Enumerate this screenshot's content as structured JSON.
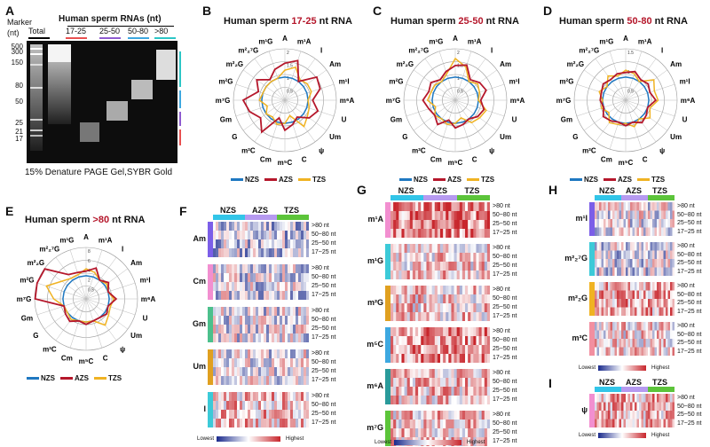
{
  "panel_letters": [
    "A",
    "B",
    "C",
    "D",
    "E",
    "F",
    "G",
    "H",
    "I"
  ],
  "gel": {
    "marker_label": "Marker",
    "nt_label": "(nt)",
    "header": "Human sperm RNAs (nt)",
    "lanes": [
      "Total",
      "17-25",
      "25-50",
      "50-80",
      ">80"
    ],
    "lane_colors": [
      "#000000",
      "#e85050",
      "#8e5bd0",
      "#3ea8e0",
      "#2cc6c6"
    ],
    "marker_sizes": [
      "500",
      "300",
      "150",
      "80",
      "50",
      "25",
      "21",
      "17"
    ],
    "caption": "15% Denature PAGE Gel,SYBR Gold"
  },
  "radar_axes": [
    "A",
    "m¹A",
    "I",
    "Am",
    "m¹I",
    "m⁶A",
    "U",
    "Um",
    "ψ",
    "C",
    "m⁵C",
    "Cm",
    "m³C",
    "G",
    "Gm",
    "m⁷G",
    "m²G",
    "m²₂G",
    "m²₂⁷G",
    "m¹G"
  ],
  "radars": [
    {
      "title_pre": "Human sperm ",
      "title_hl": "17-25",
      "title_post": " nt RNA",
      "rings": [
        "2",
        "1.5",
        "1",
        "0.5"
      ],
      "series": {
        "NZS": [
          1,
          1,
          1,
          1,
          1,
          1,
          1,
          1,
          1,
          1,
          1,
          1,
          1,
          1,
          1,
          1,
          1,
          1,
          1,
          1
        ],
        "AZS": [
          1.6,
          1.8,
          1.0,
          1.7,
          1.6,
          1.2,
          1.5,
          1.3,
          0.9,
          1.1,
          1.3,
          0.8,
          1.7,
          1.3,
          1.6,
          1.8,
          1.2,
          1.5,
          1.1,
          1.4
        ],
        "TZS": [
          1.3,
          1.5,
          1.1,
          1.2,
          1.2,
          1.0,
          1.1,
          1.2,
          1.4,
          0.7,
          1.0,
          1.1,
          0.9,
          1.0,
          0.8,
          1.1,
          1.0,
          1.0,
          1.0,
          1.0
        ]
      }
    },
    {
      "title_pre": "Human sperm ",
      "title_hl": "25-50",
      "title_post": " nt RNA",
      "rings": [
        "2",
        "1.5",
        "1",
        "0.5"
      ],
      "series": {
        "NZS": [
          1,
          1,
          1,
          1,
          1,
          1,
          1,
          1,
          1,
          1,
          1,
          1,
          1,
          1,
          1,
          1,
          1,
          1,
          1,
          1
        ],
        "AZS": [
          1.5,
          1.6,
          1.1,
          1.3,
          1.4,
          1.1,
          1.3,
          1.2,
          1.0,
          1.1,
          1.2,
          0.9,
          1.3,
          1.1,
          1.2,
          1.4,
          1.2,
          1.3,
          1.1,
          1.3
        ],
        "TZS": [
          1.8,
          1.5,
          1.0,
          1.2,
          1.1,
          1.0,
          1.4,
          1.3,
          1.2,
          0.8,
          1.0,
          1.1,
          1.0,
          1.1,
          0.9,
          1.2,
          1.1,
          1.1,
          1.0,
          1.2
        ]
      }
    },
    {
      "title_pre": "Human sperm ",
      "title_hl": "50-80",
      "title_post": " nt RNA",
      "rings": [
        "1.5",
        "1",
        "0.5"
      ],
      "series": {
        "NZS": [
          1,
          1,
          1,
          1,
          1,
          1,
          1,
          1,
          1,
          1,
          1,
          1,
          1,
          1,
          1,
          1,
          1,
          1,
          1,
          1
        ],
        "AZS": [
          1.2,
          1.3,
          1.1,
          1.2,
          1.1,
          1.3,
          1.0,
          1.1,
          1.2,
          1.0,
          1.1,
          1.0,
          1.1,
          1.2,
          1.0,
          1.1,
          1.1,
          1.2,
          1.1,
          1.2
        ],
        "TZS": [
          1.3,
          1.2,
          1.0,
          1.5,
          1.3,
          1.4,
          1.1,
          1.3,
          1.0,
          1.2,
          1.0,
          1.1,
          1.2,
          0.9,
          1.1,
          1.0,
          1.2,
          1.0,
          1.3,
          1.1
        ]
      }
    },
    {
      "title_pre": "Human sperm ",
      "title_hl": ">80",
      "title_post": " nt RNA",
      "rings": [
        "8",
        "6",
        "4",
        "2",
        "0.5"
      ],
      "series": {
        "NZS": [
          1,
          1,
          1,
          1,
          1,
          1,
          1,
          1,
          1,
          1,
          1,
          1,
          1,
          1,
          1,
          1,
          1,
          1,
          1,
          1
        ],
        "AZS": [
          1.2,
          1.4,
          1.0,
          1.2,
          1.0,
          1.3,
          1.0,
          1.1,
          1.0,
          1.0,
          1.1,
          1.0,
          1.2,
          1.1,
          1.0,
          2.2,
          3.6,
          2.2,
          1.3,
          1.2
        ],
        "TZS": [
          1.3,
          1.2,
          1.0,
          1.1,
          1.0,
          1.2,
          1.1,
          1.2,
          1.4,
          1.0,
          1.0,
          1.0,
          1.1,
          1.0,
          1.0,
          1.4,
          1.8,
          1.3,
          1.1,
          1.1
        ]
      }
    }
  ],
  "legend": [
    {
      "name": "NZS",
      "color": "#1f78c1"
    },
    {
      "name": "AZS",
      "color": "#b5172b"
    },
    {
      "name": "TZS",
      "color": "#f0b323"
    }
  ],
  "heatmap_groups": [
    {
      "name": "NZS",
      "color": "#32c5e8"
    },
    {
      "name": "AZS",
      "color": "#b69af0"
    },
    {
      "name": "TZS",
      "color": "#5cc43a"
    }
  ],
  "size_rows": [
    ">80 nt",
    "50~80 nt",
    "25~50 nt",
    "17~25 nt"
  ],
  "heatF": [
    {
      "name": "Am",
      "color": "#7b5ee8"
    },
    {
      "name": "Cm",
      "color": "#f28fd0"
    },
    {
      "name": "Gm",
      "color": "#4cc08c"
    },
    {
      "name": "Um",
      "color": "#e0a020"
    },
    {
      "name": "I",
      "color": "#3ccad8"
    }
  ],
  "heatG": [
    {
      "name": "m¹A",
      "color": "#f28fd0"
    },
    {
      "name": "m¹G",
      "color": "#3ccad8"
    },
    {
      "name": "m²G",
      "color": "#e0a020"
    },
    {
      "name": "m⁵C",
      "color": "#3ea8e0"
    },
    {
      "name": "m⁶A",
      "color": "#2a9a9a"
    },
    {
      "name": "m⁷G",
      "color": "#5cc43a"
    }
  ],
  "heatH": [
    {
      "name": "m¹I",
      "color": "#7b5ee8"
    },
    {
      "name": "m²₂⁷G",
      "color": "#3ccad8"
    },
    {
      "name": "m²₂G",
      "color": "#f0b323"
    },
    {
      "name": "m³C",
      "color": "#f28fa0"
    }
  ],
  "heatI": [
    {
      "name": "ψ",
      "color": "#f28fd0"
    }
  ],
  "scale": {
    "low": "Lowest",
    "high": "Highest"
  }
}
